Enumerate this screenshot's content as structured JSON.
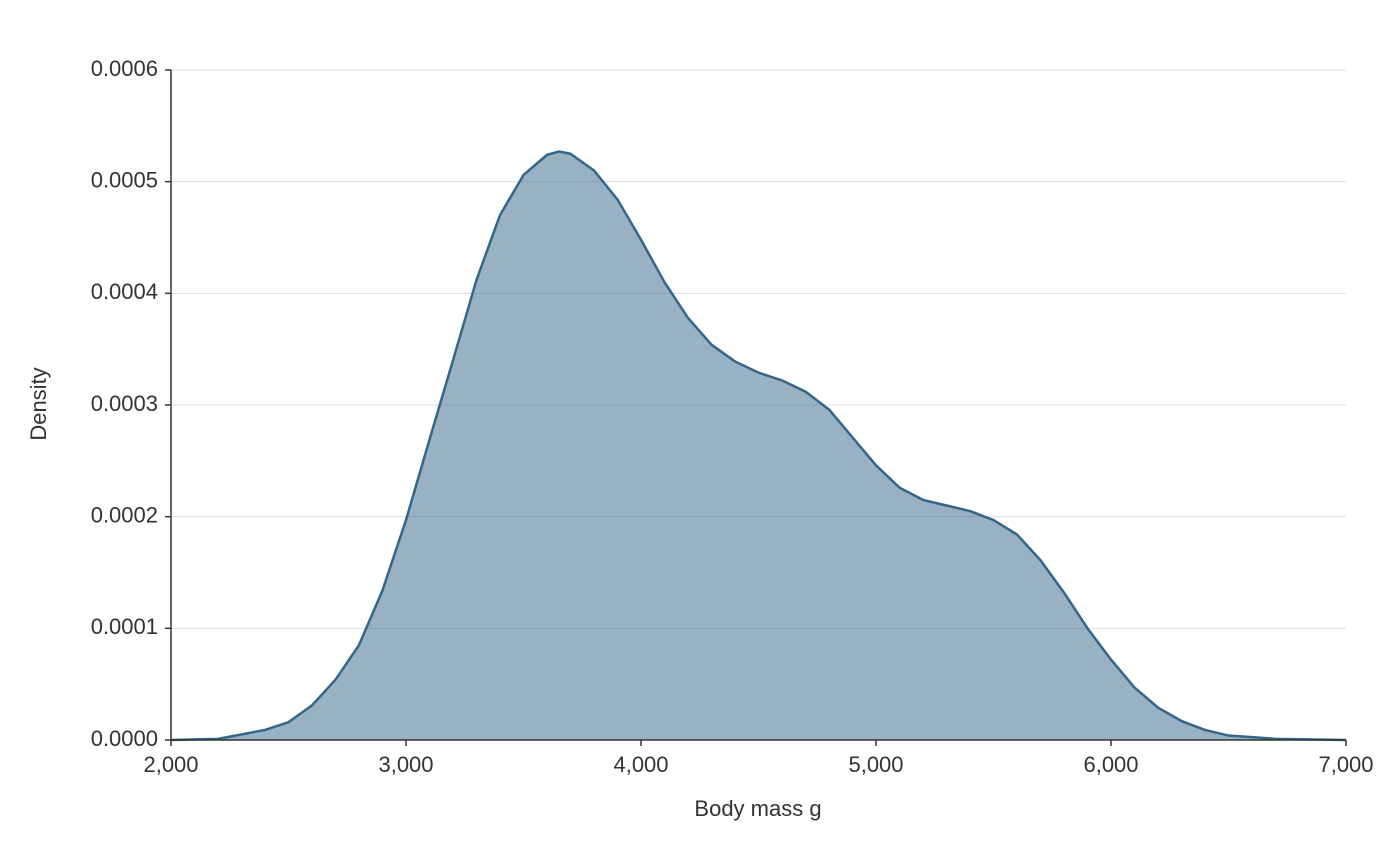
{
  "chart_data": {
    "type": "area",
    "x_label": "Body mass g",
    "y_label": "Density",
    "x": [
      2000,
      2200,
      2400,
      2500,
      2600,
      2700,
      2800,
      2900,
      3000,
      3100,
      3200,
      3300,
      3400,
      3500,
      3600,
      3650,
      3700,
      3800,
      3900,
      4000,
      4100,
      4200,
      4300,
      4400,
      4500,
      4600,
      4700,
      4800,
      4900,
      5000,
      5100,
      5200,
      5300,
      5400,
      5500,
      5600,
      5700,
      5800,
      5900,
      6000,
      6100,
      6200,
      6300,
      6400,
      6500,
      6700,
      7000
    ],
    "values": [
      0,
      1e-06,
      9e-06,
      1.6e-05,
      3.1e-05,
      5.4e-05,
      8.5e-05,
      0.000134,
      0.000197,
      0.000269,
      0.00034,
      0.000412,
      0.00047,
      0.000506,
      0.000524,
      0.000527,
      0.000525,
      0.00051,
      0.000484,
      0.000448,
      0.00041,
      0.000378,
      0.000354,
      0.000339,
      0.000329,
      0.000322,
      0.000312,
      0.000296,
      0.000271,
      0.000246,
      0.000226,
      0.000215,
      0.00021,
      0.000205,
      0.000197,
      0.000184,
      0.000161,
      0.000132,
      0.0001,
      7.2e-05,
      4.7e-05,
      2.9e-05,
      1.7e-05,
      9e-06,
      4e-06,
      1e-06,
      0
    ],
    "color": "#336688",
    "xlim": [
      2000,
      7000
    ],
    "xticks": [
      {
        "value": 2000,
        "label": "2,000"
      },
      {
        "value": 3000,
        "label": "3,000"
      },
      {
        "value": 4000,
        "label": "4,000"
      },
      {
        "value": 5000,
        "label": "5,000"
      },
      {
        "value": 6000,
        "label": "6,000"
      },
      {
        "value": 7000,
        "label": "7,000"
      }
    ],
    "ylim": [
      0,
      0.0006
    ],
    "yticks": [
      {
        "value": 0,
        "label": "0.0000"
      },
      0.0001,
      0.0002,
      0.0003,
      0.0004,
      0.0005,
      0.0006
    ],
    "grid": true
  }
}
